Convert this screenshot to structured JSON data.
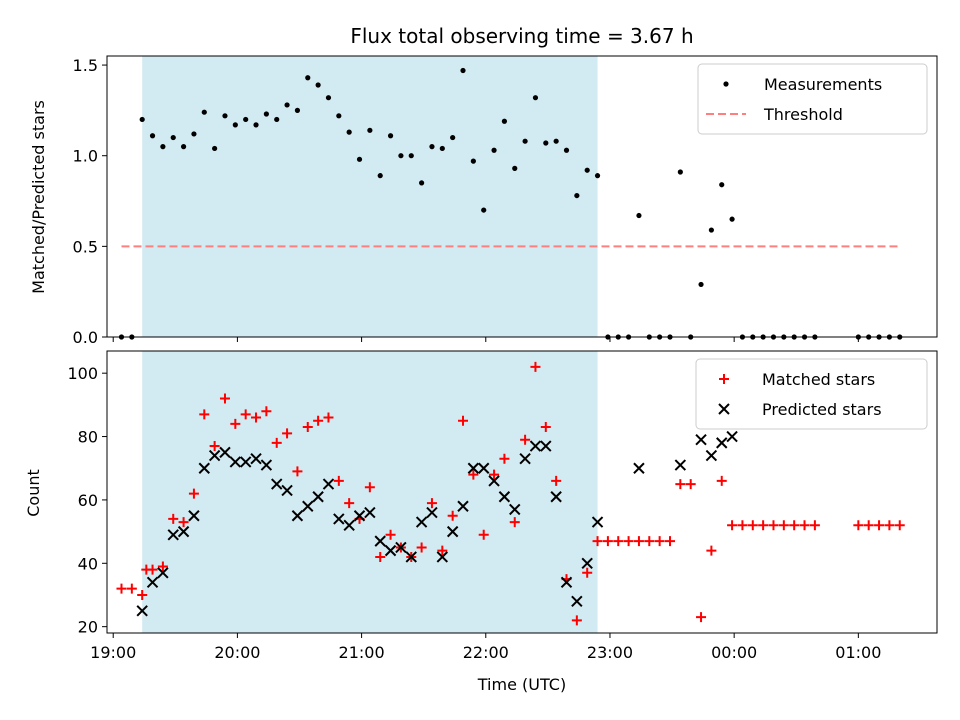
{
  "chart_data": {
    "title": "Flux total observing time = 3.67 h",
    "xlabel": "Time (UTC)",
    "x_unit": "hours since 19:00 UTC (ticks labelled as clock time)",
    "xlim": [
      "18:57",
      "01:38"
    ],
    "x_tick_labels": [
      "19:00",
      "20:00",
      "21:00",
      "22:00",
      "23:00",
      "00:00",
      "01:00"
    ],
    "shaded_span": {
      "start": "19:14",
      "end": "22:54",
      "color": "#add8e6"
    },
    "panels": [
      {
        "type": "scatter",
        "ylabel": "Matched/Predicted stars",
        "ylim": [
          0,
          1.55
        ],
        "yticks": [
          "0.0",
          "0.5",
          "1.0",
          "1.5"
        ],
        "legend_position": "top-right",
        "series": [
          {
            "name": "Measurements",
            "marker": "dot",
            "color": "#000000",
            "points": [
              [
                "19:04",
                0.0
              ],
              [
                "19:09",
                0.0
              ],
              [
                "19:14",
                1.2
              ],
              [
                "19:19",
                1.11
              ],
              [
                "19:24",
                1.05
              ],
              [
                "19:29",
                1.1
              ],
              [
                "19:34",
                1.05
              ],
              [
                "19:39",
                1.12
              ],
              [
                "19:44",
                1.24
              ],
              [
                "19:49",
                1.04
              ],
              [
                "19:54",
                1.22
              ],
              [
                "19:59",
                1.17
              ],
              [
                "20:04",
                1.2
              ],
              [
                "20:09",
                1.17
              ],
              [
                "20:14",
                1.23
              ],
              [
                "20:19",
                1.2
              ],
              [
                "20:24",
                1.28
              ],
              [
                "20:29",
                1.25
              ],
              [
                "20:34",
                1.43
              ],
              [
                "20:39",
                1.39
              ],
              [
                "20:44",
                1.32
              ],
              [
                "20:49",
                1.22
              ],
              [
                "20:54",
                1.13
              ],
              [
                "20:59",
                0.98
              ],
              [
                "21:04",
                1.14
              ],
              [
                "21:09",
                0.89
              ],
              [
                "21:14",
                1.11
              ],
              [
                "21:19",
                1.0
              ],
              [
                "21:24",
                1.0
              ],
              [
                "21:29",
                0.85
              ],
              [
                "21:34",
                1.05
              ],
              [
                "21:39",
                1.04
              ],
              [
                "21:44",
                1.1
              ],
              [
                "21:49",
                1.47
              ],
              [
                "21:54",
                0.97
              ],
              [
                "21:59",
                0.7
              ],
              [
                "22:04",
                1.03
              ],
              [
                "22:09",
                1.19
              ],
              [
                "22:14",
                0.93
              ],
              [
                "22:19",
                1.08
              ],
              [
                "22:24",
                1.32
              ],
              [
                "22:29",
                1.07
              ],
              [
                "22:34",
                1.08
              ],
              [
                "22:39",
                1.03
              ],
              [
                "22:44",
                0.78
              ],
              [
                "22:49",
                0.92
              ],
              [
                "22:54",
                0.89
              ],
              [
                "22:59",
                0.0
              ],
              [
                "23:04",
                0.0
              ],
              [
                "23:09",
                0.0
              ],
              [
                "23:14",
                0.67
              ],
              [
                "23:19",
                0.0
              ],
              [
                "23:24",
                0.0
              ],
              [
                "23:29",
                0.0
              ],
              [
                "23:34",
                0.91
              ],
              [
                "23:39",
                0.0
              ],
              [
                "23:44",
                0.29
              ],
              [
                "23:49",
                0.59
              ],
              [
                "23:54",
                0.84
              ],
              [
                "23:59",
                0.65
              ],
              [
                "00:04",
                0.0
              ],
              [
                "00:09",
                0.0
              ],
              [
                "00:14",
                0.0
              ],
              [
                "00:19",
                0.0
              ],
              [
                "00:24",
                0.0
              ],
              [
                "00:29",
                0.0
              ],
              [
                "00:34",
                0.0
              ],
              [
                "00:39",
                0.0
              ],
              [
                "01:00",
                0.0
              ],
              [
                "01:05",
                0.0
              ],
              [
                "01:10",
                0.0
              ],
              [
                "01:15",
                0.0
              ],
              [
                "01:20",
                0.0
              ]
            ]
          },
          {
            "name": "Threshold",
            "type": "line",
            "dash": "dashed",
            "color": "#ff7f7f",
            "points": [
              [
                "19:04",
                0.5
              ],
              [
                "01:20",
                0.5
              ]
            ]
          }
        ]
      },
      {
        "type": "scatter",
        "ylabel": "Count",
        "ylim": [
          18,
          107
        ],
        "yticks": [
          "20",
          "40",
          "60",
          "80",
          "100"
        ],
        "legend_position": "top-right",
        "series": [
          {
            "name": "Matched stars",
            "marker": "plus",
            "color": "#ff0000",
            "points": [
              [
                "19:04",
                32
              ],
              [
                "19:09",
                32
              ],
              [
                "19:14",
                30
              ],
              [
                "19:16",
                38
              ],
              [
                "19:19",
                38
              ],
              [
                "19:24",
                39
              ],
              [
                "19:29",
                54
              ],
              [
                "19:34",
                53
              ],
              [
                "19:39",
                62
              ],
              [
                "19:44",
                87
              ],
              [
                "19:49",
                77
              ],
              [
                "19:54",
                92
              ],
              [
                "19:59",
                84
              ],
              [
                "20:04",
                87
              ],
              [
                "20:09",
                86
              ],
              [
                "20:14",
                88
              ],
              [
                "20:19",
                78
              ],
              [
                "20:24",
                81
              ],
              [
                "20:29",
                69
              ],
              [
                "20:34",
                83
              ],
              [
                "20:39",
                85
              ],
              [
                "20:44",
                86
              ],
              [
                "20:49",
                66
              ],
              [
                "20:54",
                59
              ],
              [
                "20:59",
                54
              ],
              [
                "21:04",
                64
              ],
              [
                "21:09",
                42
              ],
              [
                "21:14",
                49
              ],
              [
                "21:19",
                45
              ],
              [
                "21:24",
                42
              ],
              [
                "21:29",
                45
              ],
              [
                "21:34",
                59
              ],
              [
                "21:39",
                44
              ],
              [
                "21:44",
                55
              ],
              [
                "21:49",
                85
              ],
              [
                "21:54",
                68
              ],
              [
                "21:59",
                49
              ],
              [
                "22:04",
                68
              ],
              [
                "22:09",
                73
              ],
              [
                "22:14",
                53
              ],
              [
                "22:19",
                79
              ],
              [
                "22:24",
                102
              ],
              [
                "22:29",
                83
              ],
              [
                "22:34",
                66
              ],
              [
                "22:39",
                35
              ],
              [
                "22:44",
                22
              ],
              [
                "22:49",
                37
              ],
              [
                "22:54",
                47
              ],
              [
                "22:59",
                47
              ],
              [
                "23:04",
                47
              ],
              [
                "23:09",
                47
              ],
              [
                "23:14",
                47
              ],
              [
                "23:19",
                47
              ],
              [
                "23:24",
                47
              ],
              [
                "23:29",
                47
              ],
              [
                "23:34",
                65
              ],
              [
                "23:39",
                65
              ],
              [
                "23:44",
                23
              ],
              [
                "23:49",
                44
              ],
              [
                "23:54",
                66
              ],
              [
                "23:59",
                52
              ],
              [
                "00:04",
                52
              ],
              [
                "00:09",
                52
              ],
              [
                "00:14",
                52
              ],
              [
                "00:19",
                52
              ],
              [
                "00:24",
                52
              ],
              [
                "00:29",
                52
              ],
              [
                "00:34",
                52
              ],
              [
                "00:39",
                52
              ],
              [
                "01:00",
                52
              ],
              [
                "01:05",
                52
              ],
              [
                "01:10",
                52
              ],
              [
                "01:15",
                52
              ],
              [
                "01:20",
                52
              ]
            ]
          },
          {
            "name": "Predicted stars",
            "marker": "x",
            "color": "#000000",
            "points": [
              [
                "19:14",
                25
              ],
              [
                "19:19",
                34
              ],
              [
                "19:24",
                37
              ],
              [
                "19:29",
                49
              ],
              [
                "19:34",
                50
              ],
              [
                "19:39",
                55
              ],
              [
                "19:44",
                70
              ],
              [
                "19:49",
                74
              ],
              [
                "19:54",
                75
              ],
              [
                "19:59",
                72
              ],
              [
                "20:04",
                72
              ],
              [
                "20:09",
                73
              ],
              [
                "20:14",
                71
              ],
              [
                "20:19",
                65
              ],
              [
                "20:24",
                63
              ],
              [
                "20:29",
                55
              ],
              [
                "20:34",
                58
              ],
              [
                "20:39",
                61
              ],
              [
                "20:44",
                65
              ],
              [
                "20:49",
                54
              ],
              [
                "20:54",
                52
              ],
              [
                "20:59",
                55
              ],
              [
                "21:04",
                56
              ],
              [
                "21:09",
                47
              ],
              [
                "21:14",
                44
              ],
              [
                "21:19",
                45
              ],
              [
                "21:24",
                42
              ],
              [
                "21:29",
                53
              ],
              [
                "21:34",
                56
              ],
              [
                "21:39",
                42
              ],
              [
                "21:44",
                50
              ],
              [
                "21:49",
                58
              ],
              [
                "21:54",
                70
              ],
              [
                "21:59",
                70
              ],
              [
                "22:04",
                66
              ],
              [
                "22:09",
                61
              ],
              [
                "22:14",
                57
              ],
              [
                "22:19",
                73
              ],
              [
                "22:24",
                77
              ],
              [
                "22:29",
                77
              ],
              [
                "22:34",
                61
              ],
              [
                "22:39",
                34
              ],
              [
                "22:44",
                28
              ],
              [
                "22:49",
                40
              ],
              [
                "22:54",
                53
              ],
              [
                "23:14",
                70
              ],
              [
                "23:34",
                71
              ],
              [
                "23:44",
                79
              ],
              [
                "23:49",
                74
              ],
              [
                "23:54",
                78
              ],
              [
                "23:59",
                80
              ]
            ]
          }
        ]
      }
    ]
  }
}
